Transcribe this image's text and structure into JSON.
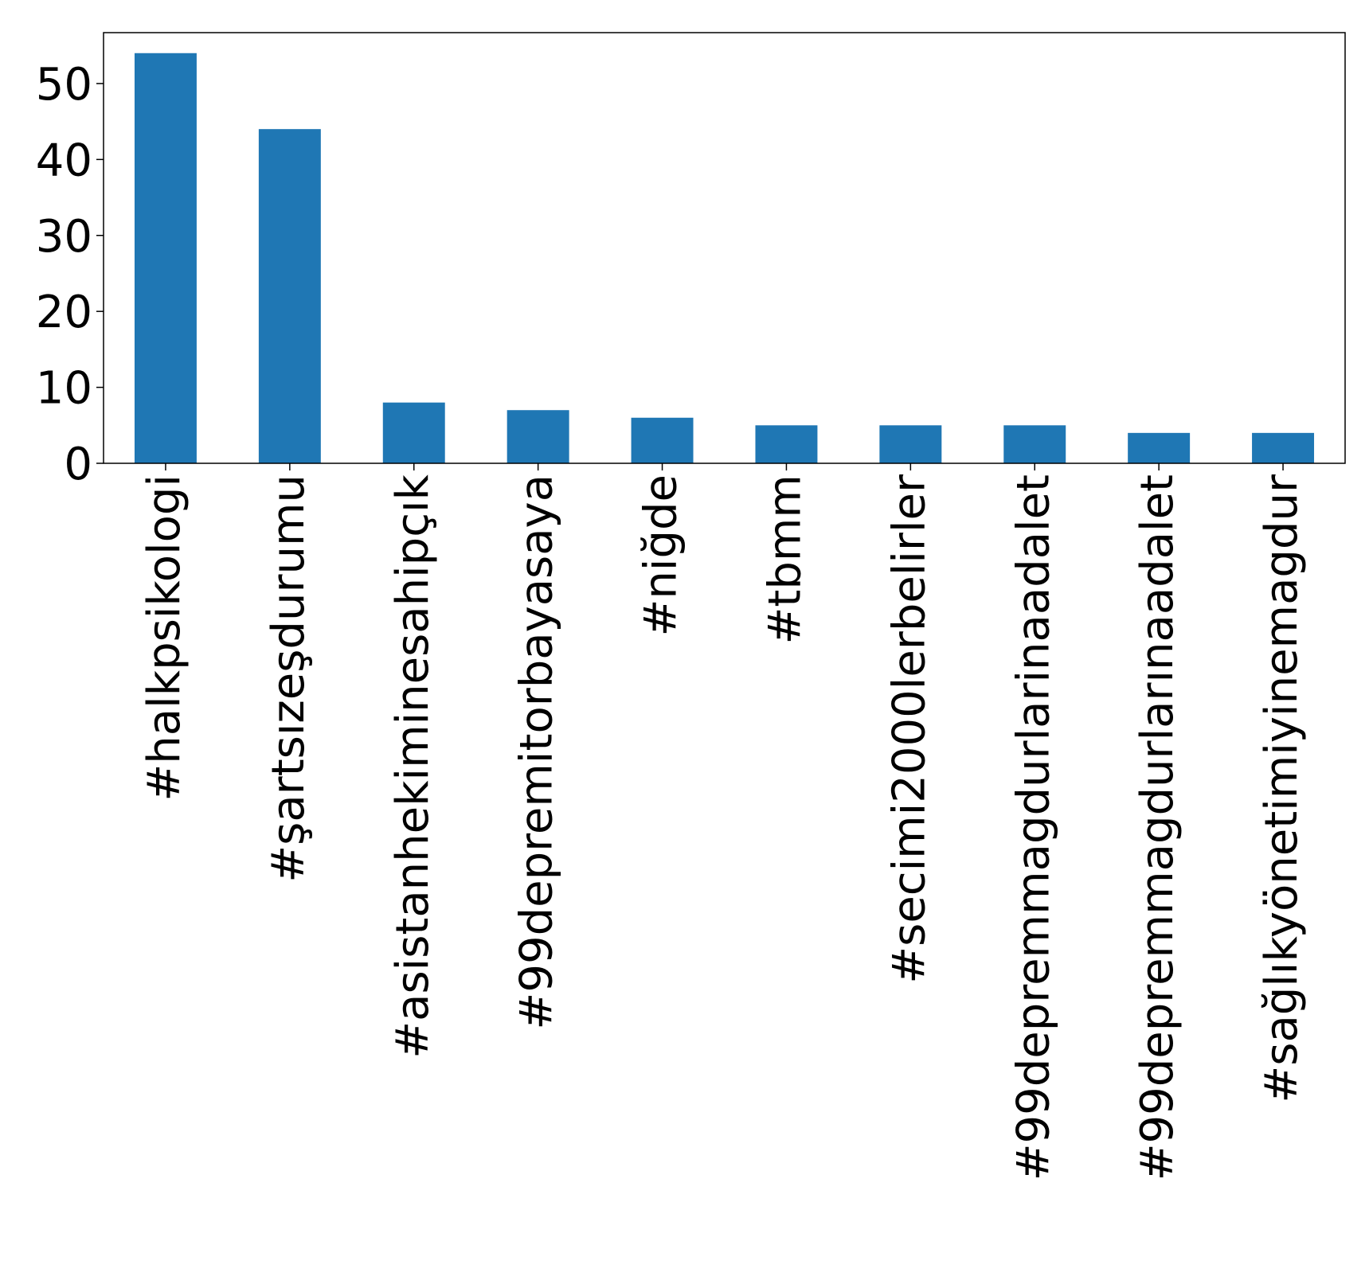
{
  "chart_data": {
    "type": "bar",
    "title": "",
    "xlabel": "",
    "ylabel": "",
    "categories": [
      "#halkpsikologi",
      "#şartsızeşdurumu",
      "#asistanhekiminesahipçık",
      "#99depremitorbayasaya",
      "#niğde",
      "#tbmm",
      "#secimi2000lerbelirler",
      "#99depremmagdurlarinaadalet",
      "#99depremmagdurlarınaadalet",
      "#sağlıkyönetimiyinemagdur"
    ],
    "values": [
      54,
      44,
      8,
      7,
      6,
      5,
      5,
      5,
      4,
      4
    ],
    "ylim": [
      0,
      56.7
    ],
    "yticks": [
      0,
      10,
      20,
      30,
      40,
      50
    ],
    "bar_color": "#1f77b4",
    "grid": false,
    "legend": false
  }
}
